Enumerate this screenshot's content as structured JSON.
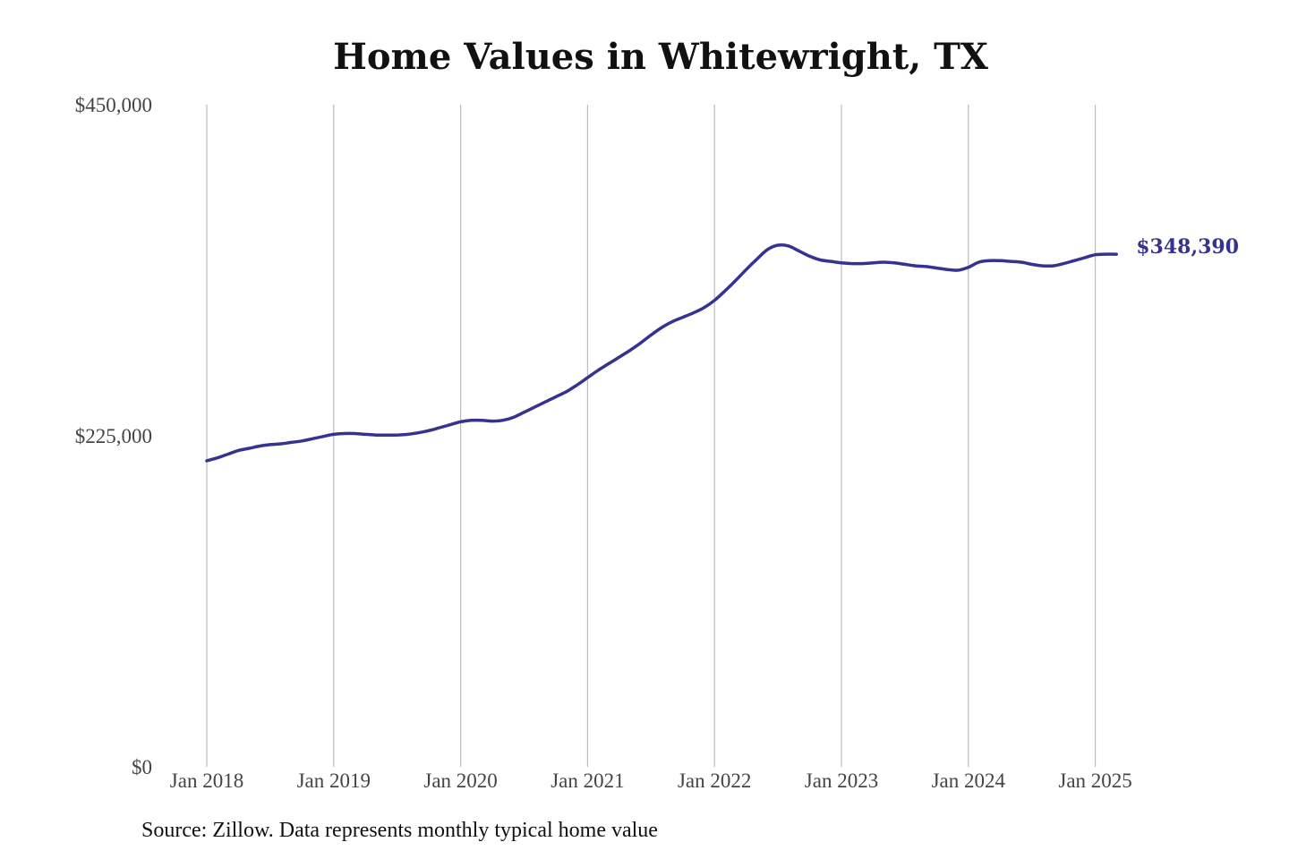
{
  "title": "Home Values in Whitewright, TX",
  "source": "Source: Zillow. Data represents monthly typical home value",
  "colors": {
    "line": "#35338f",
    "grid": "#bbbbbb"
  },
  "chart_data": {
    "type": "line",
    "title": "Home Values in Whitewright, TX",
    "xlabel": "",
    "ylabel": "",
    "ylim": [
      0,
      450000
    ],
    "y_ticks": [
      {
        "value": 0,
        "label": "$0"
      },
      {
        "value": 225000,
        "label": "$225,000"
      },
      {
        "value": 450000,
        "label": "$450,000"
      }
    ],
    "x_ticks": [
      {
        "value": "2018-01",
        "label": "Jan 2018"
      },
      {
        "value": "2019-01",
        "label": "Jan 2019"
      },
      {
        "value": "2020-01",
        "label": "Jan 2020"
      },
      {
        "value": "2021-01",
        "label": "Jan 2021"
      },
      {
        "value": "2022-01",
        "label": "Jan 2022"
      },
      {
        "value": "2023-01",
        "label": "Jan 2023"
      },
      {
        "value": "2024-01",
        "label": "Jan 2024"
      },
      {
        "value": "2025-01",
        "label": "Jan 2025"
      }
    ],
    "grid": {
      "vertical": true,
      "horizontal": false
    },
    "end_label": "$348,390",
    "series": [
      {
        "x": [
          "2018-01",
          "2018-02",
          "2018-03",
          "2018-04",
          "2018-05",
          "2018-06",
          "2018-07",
          "2018-08",
          "2018-09",
          "2018-10",
          "2018-11",
          "2018-12",
          "2019-01",
          "2019-02",
          "2019-03",
          "2019-04",
          "2019-05",
          "2019-06",
          "2019-07",
          "2019-08",
          "2019-09",
          "2019-10",
          "2019-11",
          "2019-12",
          "2020-01",
          "2020-02",
          "2020-03",
          "2020-04",
          "2020-05",
          "2020-06",
          "2020-07",
          "2020-08",
          "2020-09",
          "2020-10",
          "2020-11",
          "2020-12",
          "2021-01",
          "2021-02",
          "2021-03",
          "2021-04",
          "2021-05",
          "2021-06",
          "2021-07",
          "2021-08",
          "2021-09",
          "2021-10",
          "2021-11",
          "2021-12",
          "2022-01",
          "2022-02",
          "2022-03",
          "2022-04",
          "2022-05",
          "2022-06",
          "2022-07",
          "2022-08",
          "2022-09",
          "2022-10",
          "2022-11",
          "2022-12",
          "2023-01",
          "2023-02",
          "2023-03",
          "2023-04",
          "2023-05",
          "2023-06",
          "2023-07",
          "2023-08",
          "2023-09",
          "2023-10",
          "2023-11",
          "2023-12",
          "2024-01",
          "2024-02",
          "2024-03",
          "2024-04",
          "2024-05",
          "2024-06",
          "2024-07",
          "2024-08",
          "2024-09",
          "2024-10",
          "2024-11",
          "2024-12",
          "2025-01",
          "2025-02",
          "2025-03"
        ],
        "values": [
          208000,
          210000,
          212500,
          215000,
          216500,
          218000,
          219000,
          219500,
          220500,
          221500,
          223000,
          224500,
          226000,
          226500,
          226500,
          226000,
          225500,
          225500,
          225500,
          226000,
          227000,
          228500,
          230500,
          232500,
          234500,
          235500,
          235500,
          235000,
          235500,
          237500,
          241000,
          244500,
          248000,
          251500,
          255000,
          259500,
          264500,
          269500,
          274000,
          278500,
          283000,
          288000,
          293500,
          298500,
          302500,
          305500,
          308500,
          312000,
          317000,
          323500,
          330500,
          338000,
          345000,
          351500,
          354500,
          354000,
          350500,
          347000,
          344500,
          343500,
          342500,
          342000,
          342000,
          342500,
          343000,
          342500,
          341500,
          340500,
          340000,
          339000,
          338000,
          337500,
          339500,
          343000,
          344000,
          344000,
          343500,
          343000,
          341500,
          340500,
          340500,
          342000,
          344000,
          346000,
          348000,
          348390,
          348390
        ]
      }
    ]
  }
}
